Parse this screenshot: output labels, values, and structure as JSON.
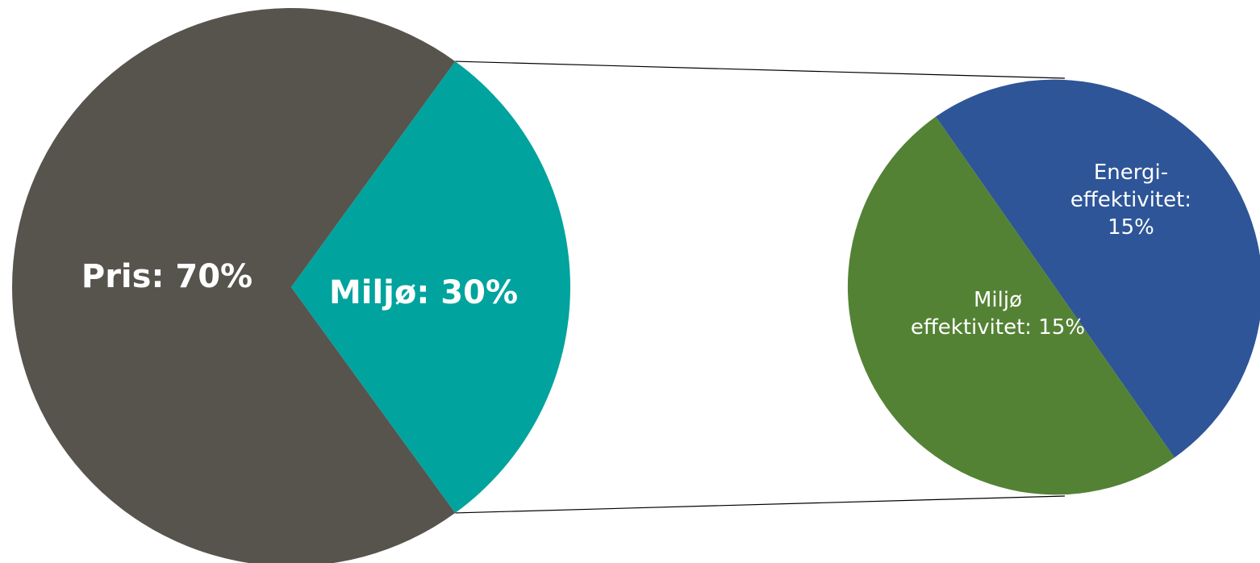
{
  "chart_data": {
    "type": "pie",
    "title": "",
    "charts": [
      {
        "slices": [
          {
            "label": "Pris: 70%",
            "value": 70,
            "color": "#57544e"
          },
          {
            "label": "Miljø: 30%",
            "value": 30,
            "color": "#00a39d"
          }
        ]
      },
      {
        "breakdown_of": "Miljø: 30%",
        "slices": [
          {
            "label_lines": [
              "Energi-",
              "effektivitet:",
              "15%"
            ],
            "value": 15,
            "color": "#2e5597"
          },
          {
            "label_lines": [
              "Miljø",
              "effektivitet: 15%"
            ],
            "value": 15,
            "color": "#548235"
          }
        ]
      }
    ],
    "connector_color": "#000000"
  }
}
